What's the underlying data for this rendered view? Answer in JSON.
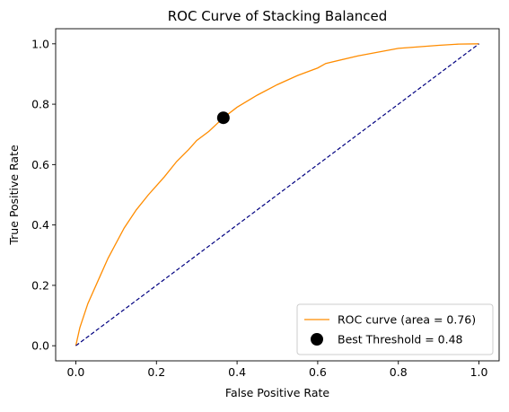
{
  "chart_data": {
    "type": "line",
    "title": "ROC Curve of Stacking Balanced",
    "xlabel": "False Positive Rate",
    "ylabel": "True Positive Rate",
    "xlim": [
      -0.05,
      1.05
    ],
    "ylim": [
      -0.05,
      1.05
    ],
    "xticks": [
      "0.0",
      "0.2",
      "0.4",
      "0.6",
      "0.8",
      "1.0"
    ],
    "yticks": [
      "0.0",
      "0.2",
      "0.4",
      "0.6",
      "0.8",
      "1.0"
    ],
    "grid": false,
    "legend_position": "bottom-right",
    "series": [
      {
        "name": "ROC curve (area = 0.76)",
        "kind": "line",
        "color": "#ff8c00",
        "x": [
          0.0,
          0.005,
          0.01,
          0.02,
          0.03,
          0.04,
          0.06,
          0.08,
          0.1,
          0.12,
          0.15,
          0.18,
          0.2,
          0.22,
          0.25,
          0.28,
          0.3,
          0.33,
          0.35,
          0.366,
          0.4,
          0.45,
          0.5,
          0.55,
          0.6,
          0.62,
          0.7,
          0.8,
          0.9,
          0.95,
          1.0
        ],
        "y": [
          0.0,
          0.03,
          0.06,
          0.1,
          0.14,
          0.17,
          0.23,
          0.29,
          0.34,
          0.39,
          0.45,
          0.5,
          0.53,
          0.56,
          0.61,
          0.65,
          0.68,
          0.71,
          0.735,
          0.755,
          0.79,
          0.83,
          0.865,
          0.895,
          0.92,
          0.935,
          0.96,
          0.985,
          0.995,
          0.999,
          1.0
        ]
      },
      {
        "name": "",
        "kind": "dashed-line",
        "color": "#000080",
        "x": [
          0.0,
          1.0
        ],
        "y": [
          0.0,
          1.0
        ]
      }
    ],
    "markers": [
      {
        "name": "Best Threshold = 0.48",
        "color": "#000000",
        "x": 0.366,
        "y": 0.755
      }
    ]
  }
}
